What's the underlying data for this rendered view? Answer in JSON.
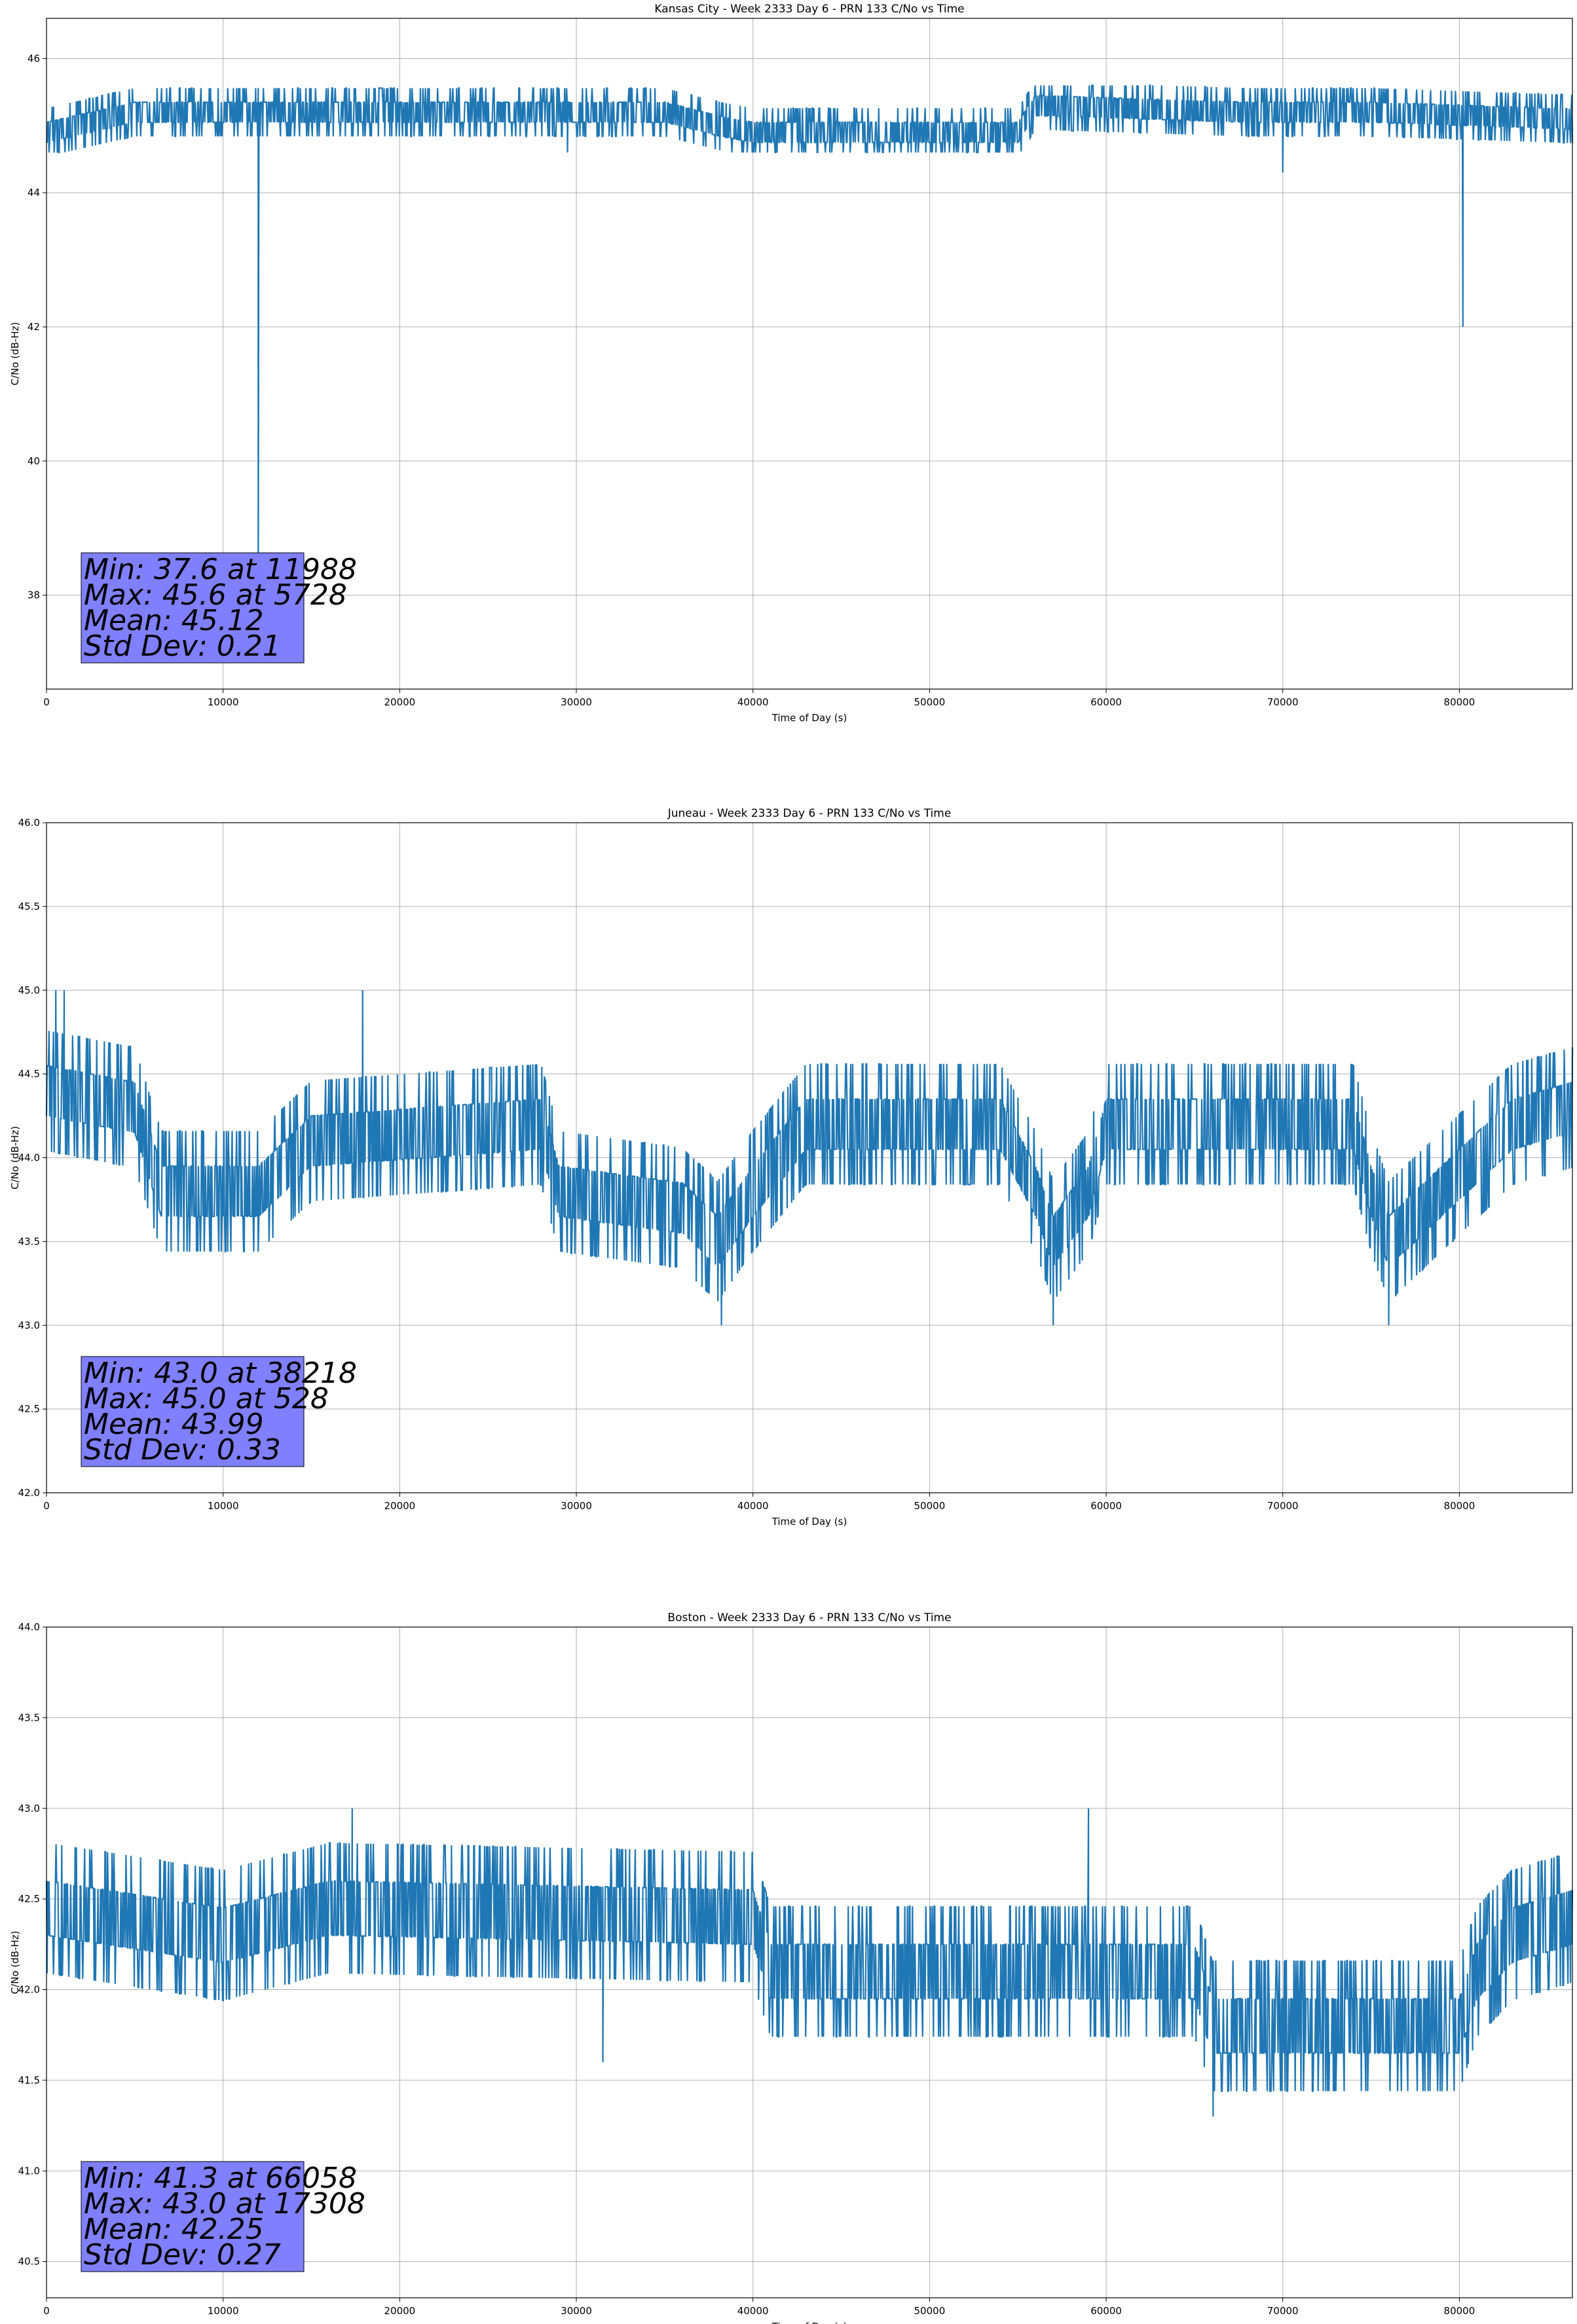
{
  "style": {
    "line_color": "#1f77b4",
    "grid_color": "#b0b0b0",
    "stats_box_color": "#8080ff"
  },
  "chart_data": [
    {
      "type": "line",
      "title": "Kansas City - Week 2333 Day 6 - PRN 133 C/No vs Time",
      "xlabel": "Time of Day (s)",
      "ylabel": "C/No (dB-Hz)",
      "xlim": [
        0,
        86400
      ],
      "ylim": [
        36.6,
        46.6
      ],
      "xticks": [
        0,
        10000,
        20000,
        30000,
        40000,
        50000,
        60000,
        70000,
        80000
      ],
      "yticks": [
        38,
        40,
        42,
        44,
        46
      ],
      "ytick_decimals": 0,
      "grid": true,
      "noise": {
        "base": 45.12,
        "step": 0.3,
        "std": 0.21,
        "min": 44.6,
        "max": 45.6
      },
      "baseline": [
        [
          0,
          44.9
        ],
        [
          5000,
          45.2
        ],
        [
          35000,
          45.2
        ],
        [
          38000,
          45.0
        ],
        [
          40000,
          44.9
        ],
        [
          55000,
          44.9
        ],
        [
          56000,
          45.3
        ],
        [
          68000,
          45.2
        ],
        [
          75000,
          45.2
        ],
        [
          86400,
          45.1
        ]
      ],
      "spikes": [
        [
          11988,
          37.6
        ],
        [
          80200,
          42.0
        ],
        [
          70000,
          44.3
        ],
        [
          29500,
          44.6
        ]
      ],
      "stats": {
        "min": "Min: 37.6 at 11988",
        "max": "Max: 45.6 at 5728",
        "mean": "Mean: 45.12",
        "std": "Std Dev: 0.21"
      }
    },
    {
      "type": "line",
      "title": "Juneau - Week 2333 Day 6 - PRN 133 C/No vs Time",
      "xlabel": "Time of Day (s)",
      "ylabel": "C/No (dB-Hz)",
      "xlim": [
        0,
        86400
      ],
      "ylim": [
        42.0,
        46.0
      ],
      "xticks": [
        0,
        10000,
        20000,
        30000,
        40000,
        50000,
        60000,
        70000,
        80000
      ],
      "yticks": [
        42.0,
        42.5,
        43.0,
        43.5,
        44.0,
        44.5,
        45.0,
        45.5,
        46.0
      ],
      "ytick_decimals": 1,
      "grid": true,
      "noise": {
        "base": 43.99,
        "step": 0.3,
        "std": 0.33,
        "min": 43.0,
        "max": 45.0
      },
      "baseline": [
        [
          0,
          44.4
        ],
        [
          5000,
          44.3
        ],
        [
          6500,
          43.8
        ],
        [
          12000,
          43.8
        ],
        [
          15000,
          44.1
        ],
        [
          28000,
          44.2
        ],
        [
          29000,
          43.8
        ],
        [
          36000,
          43.7
        ],
        [
          38000,
          43.5
        ],
        [
          40000,
          43.8
        ],
        [
          43000,
          44.2
        ],
        [
          54000,
          44.2
        ],
        [
          56000,
          43.8
        ],
        [
          57000,
          43.5
        ],
        [
          59000,
          43.8
        ],
        [
          60000,
          44.2
        ],
        [
          74000,
          44.2
        ],
        [
          75000,
          43.8
        ],
        [
          76000,
          43.5
        ],
        [
          79000,
          43.8
        ],
        [
          83000,
          44.2
        ],
        [
          86400,
          44.3
        ]
      ],
      "spikes": [
        [
          38218,
          43.0
        ],
        [
          528,
          45.0
        ],
        [
          1000,
          45.0
        ],
        [
          17900,
          45.0
        ],
        [
          57000,
          43.0
        ],
        [
          76000,
          43.0
        ]
      ],
      "stats": {
        "min": "Min: 43.0 at 38218",
        "max": "Max: 45.0 at 528",
        "mean": "Mean: 43.99",
        "std": "Std Dev: 0.33"
      }
    },
    {
      "type": "line",
      "title": "Boston - Week 2333 Day 6 - PRN 133 C/No vs Time",
      "xlabel": "Time of Day (s)",
      "ylabel": "C/No (dB-Hz)",
      "xlim": [
        0,
        86400
      ],
      "ylim": [
        40.3,
        44.0
      ],
      "xticks": [
        0,
        10000,
        20000,
        30000,
        40000,
        50000,
        60000,
        70000,
        80000
      ],
      "yticks": [
        40.5,
        41.0,
        41.5,
        42.0,
        42.5,
        43.0,
        43.5,
        44.0
      ],
      "ytick_decimals": 1,
      "grid": true,
      "noise": {
        "base": 42.25,
        "step": 0.3,
        "std": 0.27,
        "min": 41.3,
        "max": 43.0
      },
      "baseline": [
        [
          0,
          42.45
        ],
        [
          10000,
          42.3
        ],
        [
          16000,
          42.45
        ],
        [
          40000,
          42.4
        ],
        [
          41000,
          42.1
        ],
        [
          65000,
          42.1
        ],
        [
          66000,
          41.8
        ],
        [
          80000,
          41.8
        ],
        [
          81000,
          42.1
        ],
        [
          83000,
          42.3
        ],
        [
          86400,
          42.4
        ]
      ],
      "spikes": [
        [
          66058,
          41.3
        ],
        [
          17308,
          43.0
        ],
        [
          59000,
          43.0
        ],
        [
          31500,
          41.6
        ]
      ],
      "stats": {
        "min": "Min: 41.3 at 66058",
        "max": "Max: 43.0 at 17308",
        "mean": "Mean: 42.25",
        "std": "Std Dev: 0.27"
      }
    }
  ]
}
